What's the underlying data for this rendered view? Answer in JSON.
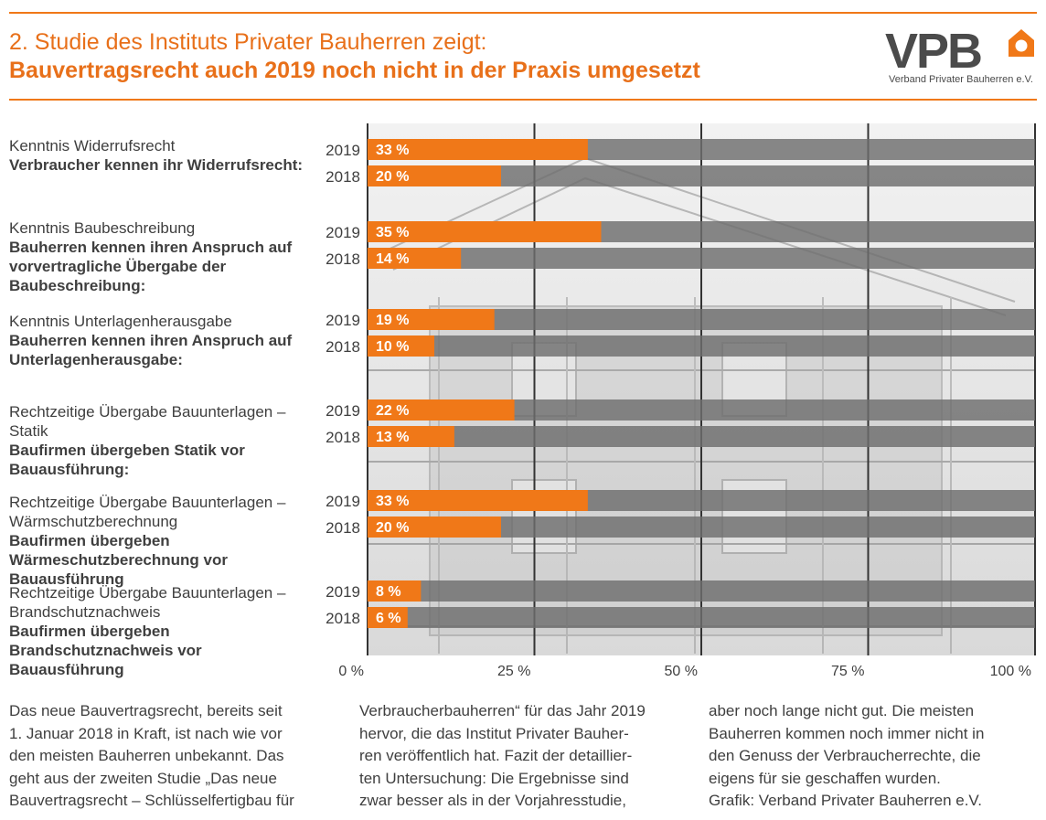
{
  "header": {
    "title_line1": "2. Studie des Instituts Privater Bauherren zeigt:",
    "title_line2": "Bauvertragsrecht auch 2019 noch nicht in der Praxis umgesetzt",
    "logo_text": "VPB",
    "logo_caption": "Verband Privater Bauherren e.V."
  },
  "colors": {
    "accent": "#f07818",
    "bar_track": "#6e6e6e",
    "text": "#3f3f3f"
  },
  "groups": [
    {
      "kicker": "Kenntnis Widerrufsrecht",
      "bold": "Verbraucher kennen ihr Widerrufsrecht:"
    },
    {
      "kicker": "Kenntnis Baubeschreibung",
      "bold": "Bauherren kennen ihren Anspruch auf vorvertragliche Übergabe der Baubeschreibung:"
    },
    {
      "kicker": "Kenntnis Unterlagenherausgabe",
      "bold": "Bauherren kennen ihren Anspruch auf Unterlagenherausgabe:"
    },
    {
      "kicker": "Rechtzeitige Übergabe Bauunterlagen – Statik",
      "bold": "Baufirmen übergeben Statik vor Bauausführung:"
    },
    {
      "kicker": "Rechtzeitige Übergabe Bauunterlagen – Wärmschutzberechnung",
      "bold": "Baufirmen übergeben Wärmeschutzberechnung vor Bauausführung"
    },
    {
      "kicker": "Rechtzeitige Übergabe Bauunterlagen – Brandschutznachweis",
      "bold": "Baufirmen übergeben Brandschutznachweis vor Bauausführung"
    }
  ],
  "chart_data": {
    "type": "bar",
    "orientation": "horizontal",
    "categories": [
      "Verbraucher kennen ihr Widerrufsrecht:",
      "Bauherren kennen ihren Anspruch auf vorvertragliche Übergabe der Baubeschreibung:",
      "Bauherren kennen ihren Anspruch auf Unterlagenherausgabe:",
      "Baufirmen übergeben Statik vor Bauausführung:",
      "Baufirmen übergeben Wärmeschutzberechnung vor Bauausführung",
      "Baufirmen übergeben Brandschutznachweis vor Bauausführung"
    ],
    "series": [
      {
        "name": "2019",
        "values": [
          33,
          35,
          19,
          22,
          33,
          8
        ],
        "labels": [
          "33 %",
          "35 %",
          "19 %",
          "22 %",
          "33 %",
          "8 %"
        ]
      },
      {
        "name": "2018",
        "values": [
          20,
          14,
          10,
          13,
          20,
          6
        ],
        "labels": [
          "20 %",
          "14 %",
          "10 %",
          "13 %",
          "20 %",
          "6 %"
        ]
      }
    ],
    "xlim": [
      0,
      100
    ],
    "x_ticks": [
      0,
      25,
      50,
      75,
      100
    ],
    "x_tick_labels": [
      "0 %",
      "25 %",
      "50 %",
      "75 %",
      "100 %"
    ],
    "grid": true
  },
  "body_text": {
    "col1": [
      "Das neue Bauvertragsrecht, bereits seit",
      "1. Januar 2018 in Kraft, ist nach wie vor",
      "den meisten Bauherren unbekannt. Das",
      "geht aus der zweiten Studie „Das neue",
      "Bauvertragsrecht – Schlüsselfertigbau für"
    ],
    "col2": [
      "Verbraucherbauherren“ für das Jahr 2019",
      "hervor, die das Institut Privater Bauher-",
      "ren veröffentlich hat. Fazit der detaillier-",
      "ten Untersuchung: Die Ergebnisse sind",
      "zwar besser als in der Vorjahresstudie,"
    ],
    "col3": [
      "aber noch lange nicht gut. Die meisten",
      "Bauherren kommen noch immer nicht in",
      "den Genuss der Verbraucherrechte, die",
      "eigens für sie geschaffen wurden.",
      "Grafik: Verband Privater Bauherren e.V."
    ]
  }
}
